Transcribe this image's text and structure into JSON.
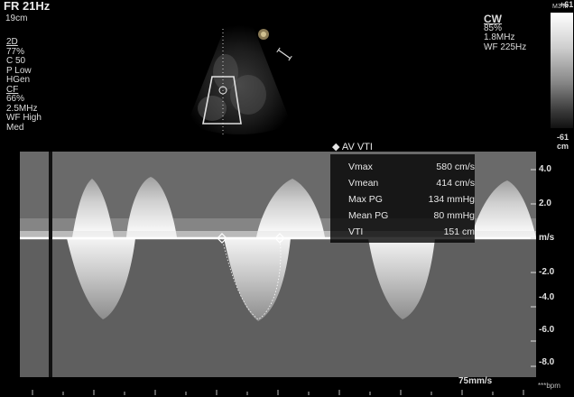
{
  "header": {
    "frame_rate": "FR 21Hz",
    "depth": "19cm"
  },
  "left_params": {
    "mode_2d": "2D",
    "lines_2d": [
      "77%",
      "C 50",
      "P Low",
      "HGen"
    ],
    "mode_cf": "CF",
    "lines_cf": [
      "66%",
      "2.5MHz",
      "WF High",
      "Med"
    ]
  },
  "cw": {
    "title": "CW",
    "lines": [
      "85%",
      "1.8MHz",
      "WF 225Hz"
    ]
  },
  "greyscale": {
    "mi_label": "M3 M",
    "top_value": "+61",
    "bottom_value": "-61",
    "bottom_unit": "cm"
  },
  "measurement": {
    "title": "AV VTI",
    "rows": [
      {
        "label": "Vmax",
        "value": "580 cm/s"
      },
      {
        "label": "Vmean",
        "value": "414 cm/s"
      },
      {
        "label": "Max PG",
        "value": "134 mmHg"
      },
      {
        "label": "Mean PG",
        "value": "80 mmHg"
      },
      {
        "label": "VTI",
        "value": "151 cm"
      }
    ]
  },
  "scale": {
    "labels": [
      "4.0",
      "2.0",
      "m/s",
      "-2.0",
      "-4.0",
      "-6.0",
      "-8.0"
    ]
  },
  "footer": {
    "sweep_speed": "75mm/s",
    "heart_rate": "***bpm"
  },
  "colors": {
    "background": "#000000",
    "doppler_bg": "#606060",
    "baseline": "#ffffff"
  }
}
